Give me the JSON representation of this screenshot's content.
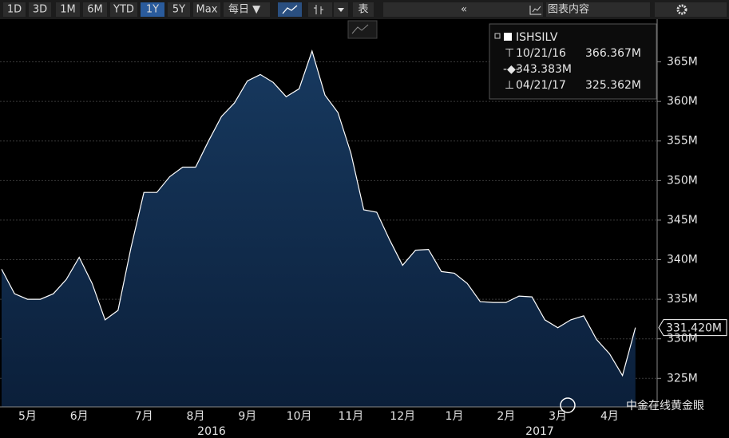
{
  "toolbar": {
    "ranges": [
      "1D",
      "3D",
      "1M",
      "6M",
      "YTD",
      "1Y",
      "5Y",
      "Max"
    ],
    "active_index": 5,
    "frequency": "每日 ▼",
    "table": "表",
    "chart_contents": "图表内容"
  },
  "chart_data": {
    "type": "area",
    "categories": [
      null,
      null,
      "5月",
      null,
      null,
      null,
      "6月",
      null,
      null,
      null,
      null,
      "7月",
      null,
      null,
      null,
      "8月",
      null,
      null,
      null,
      "9月",
      null,
      null,
      null,
      "10月",
      null,
      null,
      null,
      "11月",
      null,
      null,
      null,
      "12月",
      null,
      null,
      null,
      "1月",
      null,
      null,
      null,
      "2月",
      null,
      null,
      null,
      "3月",
      null,
      null,
      null,
      "4月",
      null,
      null
    ],
    "series": [
      {
        "name": "ISHSILV",
        "color": "#ffffff",
        "fill": "#12325a",
        "values": [
          338.8,
          335.7,
          335.0,
          335.0,
          335.7,
          337.5,
          340.3,
          337.0,
          332.4,
          333.6,
          341.5,
          348.5,
          348.5,
          350.5,
          351.7,
          351.7,
          355.0,
          358.1,
          359.8,
          362.6,
          363.4,
          362.4,
          360.6,
          361.6,
          366.37,
          360.8,
          358.6,
          353.5,
          346.3,
          346.0,
          342.5,
          339.3,
          341.2,
          341.3,
          338.5,
          338.3,
          337.0,
          334.7,
          334.6,
          334.6,
          335.4,
          335.3,
          332.4,
          331.4,
          332.4,
          332.9,
          329.9,
          328.1,
          325.36,
          331.42
        ]
      }
    ],
    "ylim": [
      321.4,
      370.4
    ],
    "yticks": [
      {
        "value": 325,
        "label": "325M"
      },
      {
        "value": 330,
        "label": "330M"
      },
      {
        "value": 335,
        "label": "335M"
      },
      {
        "value": 340,
        "label": "340M"
      },
      {
        "value": 345,
        "label": "345M"
      },
      {
        "value": 350,
        "label": "350M"
      },
      {
        "value": 355,
        "label": "355M"
      },
      {
        "value": 360,
        "label": "360M"
      },
      {
        "value": 365,
        "label": "365M"
      }
    ],
    "grid": true,
    "years": [
      "2016",
      "2017"
    ],
    "legend": {
      "name": "ISHSILV",
      "high_date": "10/21/16",
      "high": "366.367M",
      "average": "343.383M",
      "low_date": "04/21/17",
      "low": "325.362M"
    },
    "last_value_label": "331.420M"
  },
  "watermark": "中金在线黄金眼"
}
